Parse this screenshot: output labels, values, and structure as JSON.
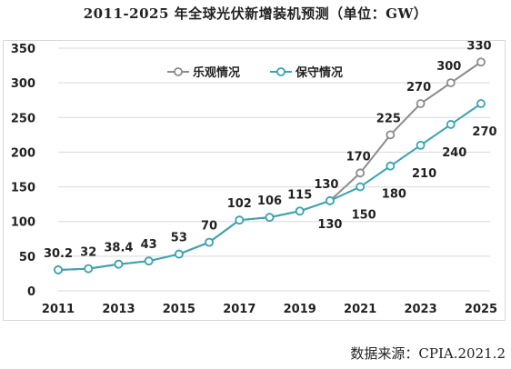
{
  "title": "2011-2025 年全球光伏新增装机预测（单位：GW）",
  "source": "数据来源：CPIA.2021.2",
  "colors": {
    "optimistic": "#8c8c8c",
    "conservative": "#3aa3b0",
    "grid": "#d9d9d9"
  },
  "chart_data": {
    "type": "line",
    "title": "2011-2025 年全球光伏新增装机预测（单位：GW）",
    "xlabel": "",
    "ylabel": "",
    "ylim": [
      0,
      350
    ],
    "yticks": [
      0,
      50,
      100,
      150,
      200,
      250,
      300,
      350
    ],
    "x": [
      2011,
      2012,
      2013,
      2014,
      2015,
      2016,
      2017,
      2018,
      2019,
      2020,
      2021,
      2022,
      2023,
      2024,
      2025
    ],
    "xtick_labels": [
      "2011",
      "2013",
      "2015",
      "2017",
      "2019",
      "2021",
      "2023",
      "2025"
    ],
    "grid": "horizontal",
    "legend": "top-center",
    "series": [
      {
        "name": "乐观情况",
        "color": "#8c8c8c",
        "values": [
          30.2,
          32,
          38.4,
          43,
          53,
          70,
          102,
          106,
          115,
          130,
          170,
          225,
          270,
          300,
          330
        ],
        "labels": [
          null,
          null,
          null,
          null,
          null,
          null,
          null,
          null,
          null,
          null,
          "170",
          "225",
          "270",
          "300",
          "330"
        ]
      },
      {
        "name": "保守情况",
        "color": "#3aa3b0",
        "values": [
          30.2,
          32,
          38.4,
          43,
          53,
          70,
          102,
          106,
          115,
          130,
          150,
          180,
          210,
          240,
          270
        ],
        "labels": [
          "30.2",
          "32",
          "38.4",
          "43",
          "53",
          "70",
          "102",
          "106",
          "115",
          "130",
          "150",
          "180",
          "210",
          "240",
          "270"
        ]
      }
    ],
    "extra_labels": [
      {
        "x": 2020,
        "text": "130"
      }
    ]
  }
}
